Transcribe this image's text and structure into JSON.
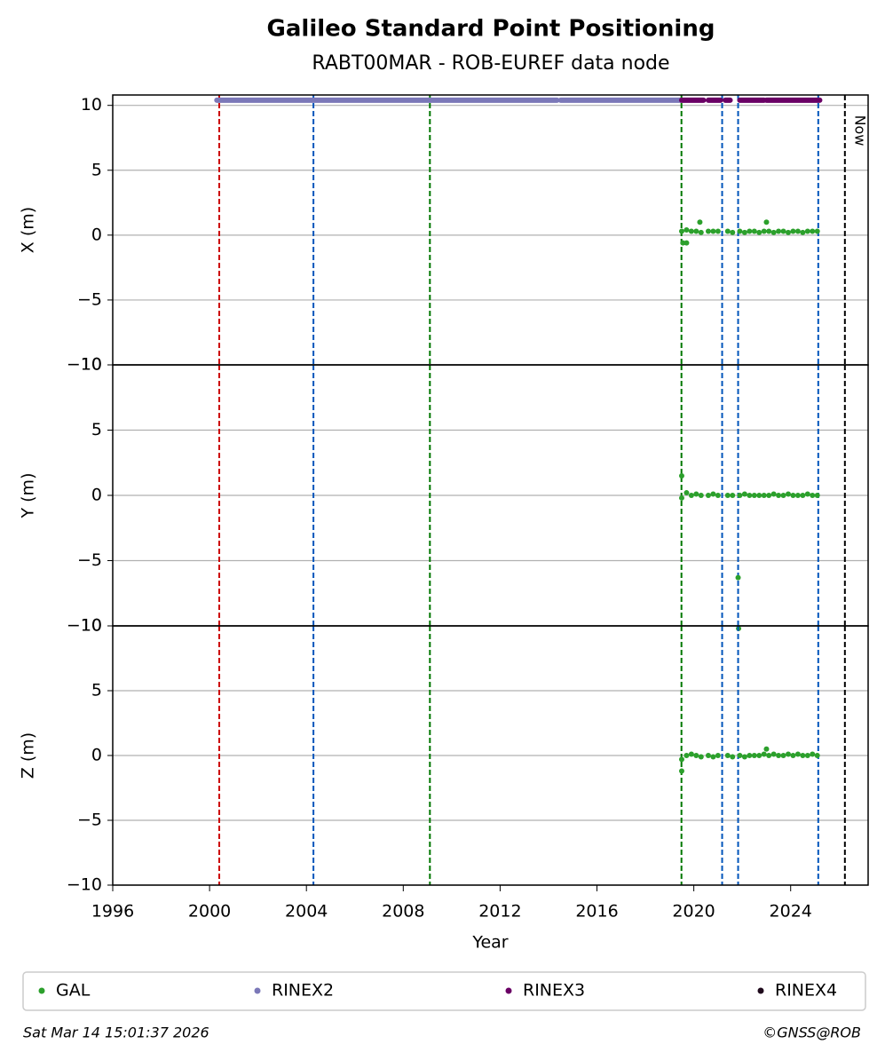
{
  "chart_data": [
    {
      "type": "scatter",
      "title": "Galileo Standard Point Positioning",
      "subtitle": "RABT00MAR - ROB-EUREF data node",
      "ylabel": "X (m)",
      "xlim": [
        1996,
        2027.2
      ],
      "ylim": [
        -10,
        10.8
      ],
      "yticks": [
        {
          "value": -10,
          "label": "−10"
        },
        {
          "value": -5,
          "label": "−5"
        },
        0,
        5,
        10
      ],
      "grid": true,
      "events": [
        {
          "x": 2000.4,
          "color": "#cc0000"
        },
        {
          "x": 2004.29,
          "color": "#0055bb"
        },
        {
          "x": 2009.1,
          "color": "#007700"
        },
        {
          "x": 2019.49,
          "color": "#007700"
        },
        {
          "x": 2021.17,
          "color": "#0055bb"
        },
        {
          "x": 2021.83,
          "color": "#0055bb"
        },
        {
          "x": 2025.14,
          "color": "#0055bb"
        },
        {
          "x": 2026.24,
          "color": "#000000",
          "label": "Now"
        }
      ],
      "series": [
        {
          "name": "GAL",
          "color": "#2ca02c",
          "x": [
            2019.5,
            2019.7,
            2019.9,
            2020.1,
            2020.3,
            2020.6,
            2020.8,
            2021.0,
            2021.4,
            2021.6,
            2021.9,
            2022.1,
            2022.3,
            2022.5,
            2022.7,
            2022.9,
            2023.1,
            2023.3,
            2023.5,
            2023.7,
            2023.9,
            2024.1,
            2024.3,
            2024.5,
            2024.7,
            2024.9,
            2025.1,
            2019.55,
            2019.7,
            2020.25,
            2023.0
          ],
          "values": [
            0.3,
            0.4,
            0.3,
            0.3,
            0.2,
            0.3,
            0.3,
            0.3,
            0.3,
            0.2,
            0.3,
            0.2,
            0.3,
            0.3,
            0.2,
            0.3,
            0.3,
            0.2,
            0.3,
            0.3,
            0.2,
            0.3,
            0.3,
            0.2,
            0.3,
            0.3,
            0.3,
            -0.6,
            -0.6,
            1.0,
            1.0
          ]
        },
        {
          "name": "RINEX2",
          "color": "#7b78b8",
          "y": 10.4,
          "ranges": [
            [
              2000.3,
              2014.35
            ],
            [
              2014.5,
              2019.45
            ]
          ]
        },
        {
          "name": "RINEX3",
          "color": "#6a0065",
          "y": 10.4,
          "ranges": [
            [
              2019.5,
              2020.4
            ],
            [
              2020.6,
              2021.1
            ],
            [
              2021.3,
              2021.5
            ],
            [
              2021.9,
              2022.9
            ],
            [
              2023.0,
              2025.2
            ]
          ]
        },
        {
          "name": "RINEX4",
          "color": "#1f0a1c",
          "y": 10.4,
          "ranges": []
        }
      ]
    },
    {
      "type": "scatter",
      "ylabel": "Y (m)",
      "xlim": [
        1996,
        2027.2
      ],
      "ylim": [
        -10,
        10
      ],
      "yticks": [
        {
          "value": -10,
          "label": "−10"
        },
        {
          "value": -5,
          "label": "−5"
        },
        0,
        5,
        10
      ],
      "grid": true,
      "series": [
        {
          "color": "#2ca02c",
          "x": [
            2019.5,
            2019.7,
            2019.9,
            2020.1,
            2020.3,
            2020.6,
            2020.8,
            2021.0,
            2021.4,
            2021.6,
            2021.9,
            2022.1,
            2022.3,
            2022.5,
            2022.7,
            2022.9,
            2023.1,
            2023.3,
            2023.5,
            2023.7,
            2023.9,
            2024.1,
            2024.3,
            2024.5,
            2024.7,
            2024.9,
            2025.1,
            2019.5,
            2021.83,
            2021.85
          ],
          "values": [
            -0.2,
            0.2,
            0.0,
            0.1,
            0.0,
            0.0,
            0.1,
            0.0,
            0.0,
            0.0,
            0.0,
            0.1,
            0.0,
            0.0,
            0.0,
            0.0,
            0.0,
            0.1,
            0.0,
            0.0,
            0.1,
            0.0,
            0.0,
            0.0,
            0.1,
            0.0,
            0.0,
            1.5,
            -6.3,
            -10.2
          ]
        }
      ]
    },
    {
      "type": "scatter",
      "ylabel": "Z (m)",
      "xlabel": "Year",
      "xlim": [
        1996,
        2027.2
      ],
      "ylim": [
        -10,
        10
      ],
      "xticks": [
        1996,
        2000,
        2004,
        2008,
        2012,
        2016,
        2020,
        2024
      ],
      "yticks": [
        {
          "value": -10,
          "label": "−10"
        },
        {
          "value": -5,
          "label": "−5"
        },
        0,
        5,
        10
      ],
      "grid": true,
      "series": [
        {
          "color": "#2ca02c",
          "x": [
            2019.5,
            2019.7,
            2019.9,
            2020.1,
            2020.3,
            2020.6,
            2020.8,
            2021.0,
            2021.4,
            2021.6,
            2021.9,
            2022.1,
            2022.3,
            2022.5,
            2022.7,
            2022.9,
            2023.1,
            2023.3,
            2023.5,
            2023.7,
            2023.9,
            2024.1,
            2024.3,
            2024.5,
            2024.7,
            2024.9,
            2025.1,
            2019.5,
            2023.0
          ],
          "values": [
            -0.3,
            0.0,
            0.1,
            0.0,
            -0.1,
            0.0,
            -0.1,
            0.0,
            0.0,
            -0.1,
            0.0,
            -0.1,
            0.0,
            0.0,
            0.0,
            0.1,
            0.0,
            0.1,
            0.0,
            0.0,
            0.1,
            0.0,
            0.1,
            0.0,
            0.0,
            0.1,
            0.0,
            -1.2,
            0.5
          ]
        }
      ]
    }
  ],
  "footer": {
    "timestamp": "Sat Mar 14 15:01:37 2026",
    "credit": "©GNSS@ROB"
  }
}
